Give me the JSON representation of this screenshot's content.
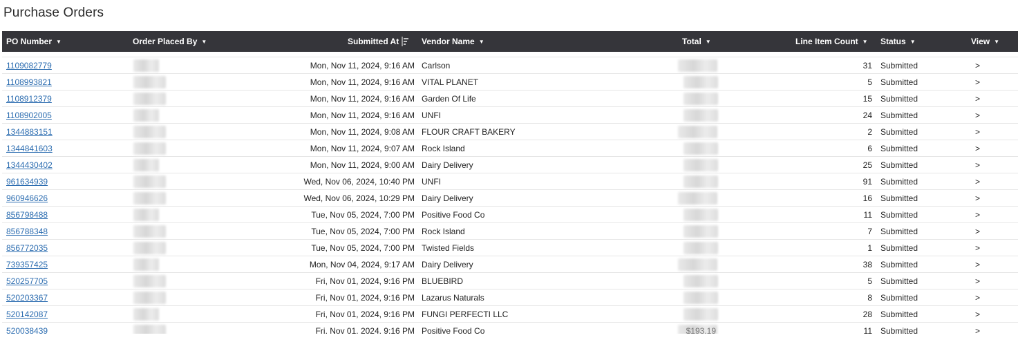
{
  "page": {
    "title": "Purchase Orders"
  },
  "columns": {
    "po_number": "PO Number",
    "order_placed_by": "Order Placed By",
    "submitted_at": "Submitted At",
    "vendor_name": "Vendor Name",
    "total": "Total",
    "line_item_count": "Line Item Count",
    "status": "Status",
    "view": "View"
  },
  "rows": [
    {
      "po": "1109082779",
      "submitted_at": "Mon, Nov 11, 2024, 9:16 AM",
      "vendor": "Carlson",
      "count": "31",
      "status": "Submitted",
      "view": ">"
    },
    {
      "po": "1108993821",
      "submitted_at": "Mon, Nov 11, 2024, 9:16 AM",
      "vendor": "VITAL PLANET",
      "count": "5",
      "status": "Submitted",
      "view": ">"
    },
    {
      "po": "1108912379",
      "submitted_at": "Mon, Nov 11, 2024, 9:16 AM",
      "vendor": "Garden Of Life",
      "count": "15",
      "status": "Submitted",
      "view": ">"
    },
    {
      "po": "1108902005",
      "submitted_at": "Mon, Nov 11, 2024, 9:16 AM",
      "vendor": "UNFI",
      "count": "24",
      "status": "Submitted",
      "view": ">"
    },
    {
      "po": "1344883151",
      "submitted_at": "Mon, Nov 11, 2024, 9:08 AM",
      "vendor": "FLOUR CRAFT BAKERY",
      "count": "2",
      "status": "Submitted",
      "view": ">"
    },
    {
      "po": "1344841603",
      "submitted_at": "Mon, Nov 11, 2024, 9:07 AM",
      "vendor": "Rock Island",
      "count": "6",
      "status": "Submitted",
      "view": ">"
    },
    {
      "po": "1344430402",
      "submitted_at": "Mon, Nov 11, 2024, 9:00 AM",
      "vendor": "Dairy Delivery",
      "count": "25",
      "status": "Submitted",
      "view": ">"
    },
    {
      "po": "961634939",
      "submitted_at": "Wed, Nov 06, 2024, 10:40 PM",
      "vendor": "UNFI",
      "count": "91",
      "status": "Submitted",
      "view": ">"
    },
    {
      "po": "960946626",
      "submitted_at": "Wed, Nov 06, 2024, 10:29 PM",
      "vendor": "Dairy Delivery",
      "count": "16",
      "status": "Submitted",
      "view": ">"
    },
    {
      "po": "856798488",
      "submitted_at": "Tue, Nov 05, 2024, 7:00 PM",
      "vendor": "Positive Food Co",
      "count": "11",
      "status": "Submitted",
      "view": ">"
    },
    {
      "po": "856788348",
      "submitted_at": "Tue, Nov 05, 2024, 7:00 PM",
      "vendor": "Rock Island",
      "count": "7",
      "status": "Submitted",
      "view": ">"
    },
    {
      "po": "856772035",
      "submitted_at": "Tue, Nov 05, 2024, 7:00 PM",
      "vendor": "Twisted Fields",
      "count": "1",
      "status": "Submitted",
      "view": ">"
    },
    {
      "po": "739357425",
      "submitted_at": "Mon, Nov 04, 2024, 9:17 AM",
      "vendor": "Dairy Delivery",
      "count": "38",
      "status": "Submitted",
      "view": ">"
    },
    {
      "po": "520257705",
      "submitted_at": "Fri, Nov 01, 2024, 9:16 PM",
      "vendor": "BLUEBIRD",
      "count": "5",
      "status": "Submitted",
      "view": ">"
    },
    {
      "po": "520203367",
      "submitted_at": "Fri, Nov 01, 2024, 9:16 PM",
      "vendor": "Lazarus Naturals",
      "count": "8",
      "status": "Submitted",
      "view": ">"
    },
    {
      "po": "520142087",
      "submitted_at": "Fri, Nov 01, 2024, 9:16 PM",
      "vendor": "FUNGI PERFECTI LLC",
      "count": "28",
      "status": "Submitted",
      "view": ">"
    },
    {
      "po": "520038439",
      "submitted_at": "Fri, Nov 01, 2024, 9:16 PM",
      "vendor": "Positive Food Co",
      "count": "11",
      "status": "Submitted",
      "view": ">",
      "total": "$193.19"
    }
  ]
}
